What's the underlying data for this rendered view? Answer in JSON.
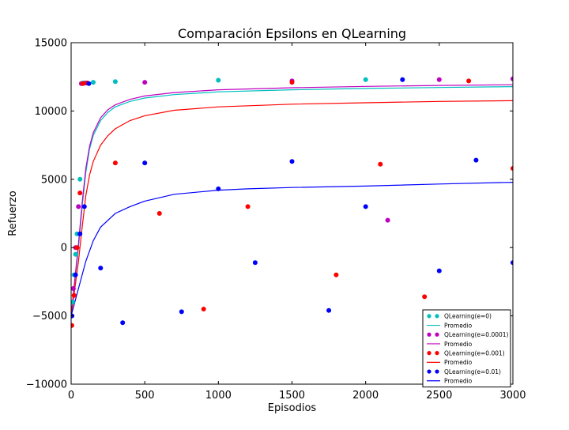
{
  "chart_data": {
    "type": "scatter",
    "title": "Comparación Epsilons en QLearning",
    "xlabel": "Episodios",
    "ylabel": "Refuerzo",
    "xlim": [
      0,
      3000
    ],
    "ylim": [
      -10000,
      15000
    ],
    "xticks": [
      0,
      500,
      1000,
      1500,
      2000,
      2500,
      3000
    ],
    "yticks": [
      -10000,
      -5000,
      0,
      5000,
      10000,
      15000
    ],
    "grid": false,
    "legend_position": "bottom-right",
    "series": [
      {
        "name": "QLearning(e=0)",
        "kind": "scatter",
        "color": "#00bfbf",
        "x": [
          5,
          10,
          15,
          20,
          30,
          40,
          50,
          60,
          70,
          80,
          90,
          100,
          150,
          300,
          1000,
          2000,
          3000
        ],
        "y": [
          -5000,
          -4000,
          -3000,
          -2000,
          -500,
          1000,
          3000,
          5000,
          12000,
          12050,
          12050,
          12050,
          12100,
          12150,
          12250,
          12300,
          12350
        ]
      },
      {
        "name": "Promedio",
        "kind": "line",
        "color": "#00bfbf",
        "x": [
          0,
          25,
          50,
          75,
          100,
          125,
          150,
          200,
          250,
          300,
          400,
          500,
          700,
          1000,
          1500,
          2000,
          2500,
          3000
        ],
        "y": [
          -5000,
          -2500,
          0,
          3000,
          5500,
          7200,
          8200,
          9300,
          9900,
          10300,
          10700,
          10950,
          11200,
          11400,
          11550,
          11650,
          11720,
          11780
        ]
      },
      {
        "name": "QLearning(e=0.0001)",
        "kind": "scatter",
        "color": "#bf00bf",
        "x": [
          5,
          15,
          30,
          50,
          70,
          100,
          500,
          1500,
          2150,
          2500,
          3000
        ],
        "y": [
          -5000,
          -3000,
          0,
          3000,
          12000,
          12050,
          12100,
          12200,
          2000,
          12300,
          12350
        ]
      },
      {
        "name": "Promedio",
        "kind": "line",
        "color": "#bf00bf",
        "x": [
          0,
          25,
          50,
          75,
          100,
          125,
          150,
          200,
          250,
          300,
          400,
          500,
          700,
          1000,
          1500,
          2000,
          2500,
          3000
        ],
        "y": [
          -5000,
          -2300,
          300,
          3300,
          5800,
          7400,
          8400,
          9500,
          10100,
          10450,
          10850,
          11100,
          11350,
          11550,
          11700,
          11800,
          11870,
          11920
        ]
      },
      {
        "name": "QLearning(e=0.001)",
        "kind": "scatter",
        "color": "#ff0000",
        "x": [
          5,
          20,
          40,
          60,
          80,
          110,
          300,
          600,
          900,
          1200,
          1500,
          1800,
          2100,
          2400,
          2700,
          3000
        ],
        "y": [
          -5700,
          -3500,
          0,
          4000,
          12000,
          12050,
          6200,
          2500,
          -4500,
          3000,
          12100,
          -2000,
          6100,
          -3600,
          12200,
          5800
        ]
      },
      {
        "name": "Promedio",
        "kind": "line",
        "color": "#ff0000",
        "x": [
          0,
          25,
          50,
          75,
          100,
          125,
          150,
          200,
          250,
          300,
          400,
          500,
          700,
          1000,
          1500,
          2000,
          2500,
          3000
        ],
        "y": [
          -5000,
          -3000,
          -1000,
          1500,
          3800,
          5300,
          6300,
          7500,
          8200,
          8700,
          9300,
          9650,
          10050,
          10300,
          10500,
          10600,
          10700,
          10750
        ]
      },
      {
        "name": "QLearning(e=0.01)",
        "kind": "scatter",
        "color": "#0000ff",
        "x": [
          5,
          30,
          60,
          90,
          120,
          200,
          350,
          500,
          750,
          1000,
          1250,
          1500,
          1750,
          2000,
          2250,
          2500,
          2750,
          3000
        ],
        "y": [
          -5000,
          -2000,
          1000,
          3000,
          12000,
          -1500,
          -5500,
          6200,
          -4700,
          4300,
          -1100,
          6300,
          -4600,
          3000,
          12300,
          -1700,
          6400,
          -1100
        ]
      },
      {
        "name": "Promedio",
        "kind": "line",
        "color": "#0000ff",
        "x": [
          0,
          50,
          100,
          150,
          200,
          300,
          400,
          500,
          700,
          1000,
          1200,
          1500,
          2000,
          2500,
          3000
        ],
        "y": [
          -5000,
          -3000,
          -1000,
          500,
          1500,
          2500,
          3000,
          3400,
          3900,
          4200,
          4300,
          4400,
          4500,
          4650,
          4780
        ]
      }
    ]
  }
}
